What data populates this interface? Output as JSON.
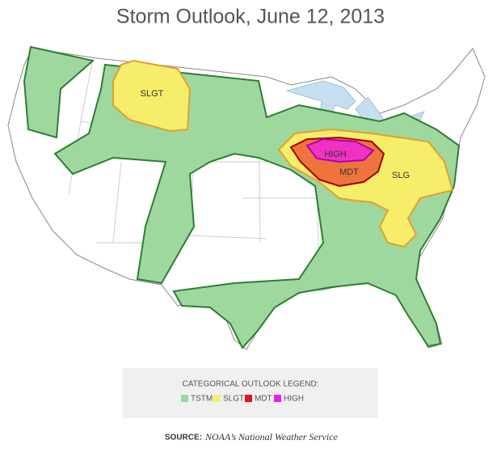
{
  "title": "Storm Outlook, June 12, 2013",
  "map_labels": [
    "SLGT",
    "HIGH",
    "MDT",
    "SLG"
  ],
  "legend": {
    "title": "CATEGORICAL OUTLOOK LEGEND:",
    "items": [
      {
        "label": "TSTM",
        "color": "#9ed89e"
      },
      {
        "label": "SLGT",
        "color": "#f6ee6a"
      },
      {
        "label": "MDT",
        "color": "#e8101a"
      },
      {
        "label": "HIGH",
        "color": "#f01cf0"
      }
    ]
  },
  "source": {
    "label": "SOURCE:",
    "text": "NOAA’s National Weather Service"
  }
}
